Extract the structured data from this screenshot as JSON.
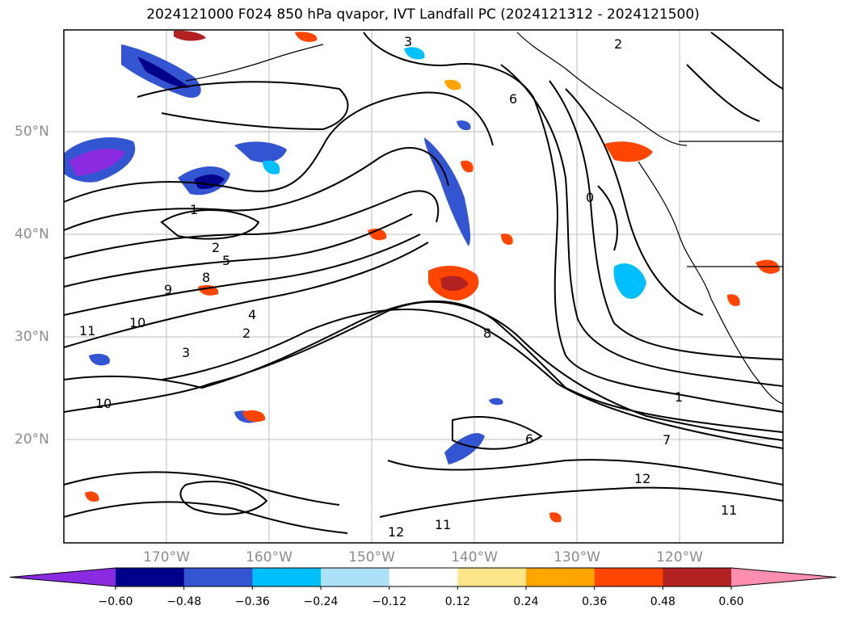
{
  "title": "2024121000 F024 850 hPa qvapor, IVT Landfall PC (2024121312 - 2024121500)",
  "map": {
    "lat_labels": [
      "50°N",
      "40°N",
      "30°N",
      "20°N"
    ],
    "lon_labels": [
      "170°W",
      "160°W",
      "150°W",
      "140°W",
      "130°W",
      "120°W"
    ],
    "contour_labels": [
      "1",
      "2",
      "3",
      "4",
      "5",
      "6",
      "8",
      "9",
      "10",
      "11",
      "12",
      "0",
      "7"
    ]
  },
  "colorbar": {
    "ticks": [
      "−0.60",
      "−0.48",
      "−0.36",
      "−0.24",
      "−0.12",
      "0.12",
      "0.24",
      "0.36",
      "0.48",
      "0.60"
    ],
    "colors": [
      "#8a2be2",
      "#00008b",
      "#3455d1",
      "#00bfff",
      "#ade1f7",
      "#ffffff",
      "#fde68a",
      "#ffa500",
      "#ff4500",
      "#b22222",
      "#ff8fb0"
    ]
  }
}
